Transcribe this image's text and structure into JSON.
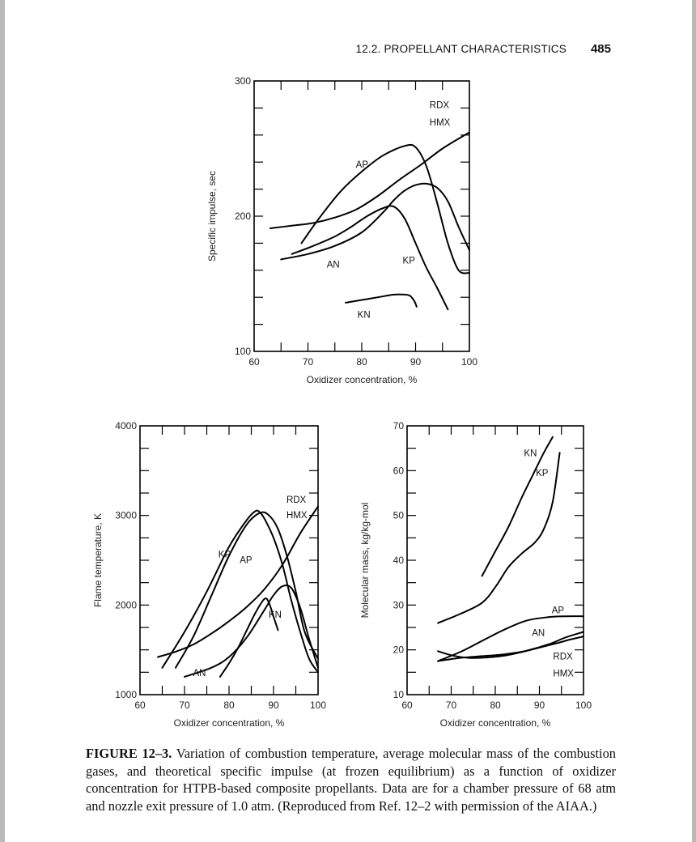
{
  "page": {
    "section_title": "12.2. PROPELLANT CHARACTERISTICS",
    "page_number": "485"
  },
  "chart_data": [
    {
      "type": "line",
      "ylabel": "Specific impulse, sec",
      "xlabel": "Oxidizer concentration, %",
      "xlim": [
        60,
        100
      ],
      "ylim": [
        100,
        300
      ],
      "x_ticks": [
        "60",
        "70",
        "80",
        "90",
        "100"
      ],
      "y_ticks": [
        "100",
        "200",
        "300"
      ],
      "minor_x_step": 5,
      "minor_y_step": 20,
      "grid": false,
      "series": [
        {
          "name": "AP",
          "x": [
            68.8,
            72,
            76,
            80,
            84,
            88,
            90,
            92,
            94,
            96,
            98,
            100
          ],
          "y": [
            180,
            198,
            218,
            233,
            245,
            252,
            251,
            237,
            210,
            180,
            160,
            158
          ]
        },
        {
          "name": "RDX HMX",
          "x": [
            63,
            67,
            71,
            75,
            79,
            83,
            87,
            91,
            95,
            100
          ],
          "y": [
            191,
            193,
            195,
            199,
            205,
            215,
            227,
            238,
            250,
            262
          ]
        },
        {
          "name": "KP",
          "x": [
            67,
            71,
            75,
            78,
            81,
            84,
            86,
            88,
            90,
            92,
            94,
            96
          ],
          "y": [
            172,
            178,
            185,
            192,
            200,
            206,
            207,
            198,
            180,
            162,
            147,
            131
          ]
        },
        {
          "name": "AN",
          "x": [
            65,
            70,
            75,
            80,
            84,
            86,
            88,
            90,
            92,
            94,
            96,
            98,
            100
          ],
          "y": [
            168,
            172,
            178,
            188,
            203,
            212,
            219,
            223,
            224,
            221,
            211,
            192,
            175
          ]
        },
        {
          "name": "KN",
          "x": [
            77,
            80,
            83,
            86,
            88,
            89,
            89.8,
            90.2
          ],
          "y": [
            136,
            138,
            140,
            142,
            142,
            141,
            137,
            133
          ]
        }
      ],
      "labels": [
        {
          "text": "RDX",
          "x": 92.6,
          "y": 280
        },
        {
          "text": "HMX",
          "x": 92.6,
          "y": 267
        },
        {
          "text": "AP",
          "x": 78.9,
          "y": 236
        },
        {
          "text": "AN",
          "x": 73.5,
          "y": 162
        },
        {
          "text": "KP",
          "x": 87.6,
          "y": 165
        },
        {
          "text": "KN",
          "x": 79.2,
          "y": 125
        }
      ]
    },
    {
      "type": "line",
      "ylabel": "Flame temperature, K",
      "xlabel": "Oxidizer concentration, %",
      "xlim": [
        60,
        100
      ],
      "ylim": [
        1000,
        4000
      ],
      "x_ticks": [
        "60",
        "70",
        "80",
        "90",
        "100"
      ],
      "y_ticks": [
        "1000",
        "2000",
        "3000",
        "4000"
      ],
      "minor_x_step": 5,
      "minor_y_step": 250,
      "grid": false,
      "series": [
        {
          "name": "KP",
          "x": [
            65,
            70,
            75,
            80,
            84,
            86,
            87,
            88,
            90,
            92,
            94,
            96,
            98,
            100
          ],
          "y": [
            1300,
            1700,
            2150,
            2650,
            2950,
            3050,
            3030,
            2960,
            2750,
            2450,
            2050,
            1700,
            1400,
            1250
          ]
        },
        {
          "name": "AP",
          "x": [
            68,
            72,
            76,
            80,
            84,
            87,
            89,
            91,
            93,
            95,
            97,
            100
          ],
          "y": [
            1300,
            1650,
            2100,
            2550,
            2900,
            3030,
            3000,
            2850,
            2550,
            2150,
            1700,
            1400
          ]
        },
        {
          "name": "RDX HMX",
          "x": [
            64,
            68,
            72,
            76,
            80,
            84,
            88,
            92,
            96,
            100
          ],
          "y": [
            1420,
            1480,
            1560,
            1680,
            1820,
            1980,
            2180,
            2450,
            2800,
            3100
          ]
        },
        {
          "name": "AN",
          "x": [
            70,
            76,
            80,
            84,
            88,
            90,
            92,
            94,
            96,
            98,
            100
          ],
          "y": [
            1200,
            1300,
            1420,
            1640,
            1950,
            2110,
            2210,
            2190,
            1970,
            1620,
            1300
          ]
        },
        {
          "name": "KN",
          "x": [
            78,
            80,
            82,
            84,
            86,
            88,
            89,
            90,
            91
          ],
          "y": [
            1200,
            1350,
            1520,
            1720,
            1920,
            2070,
            2020,
            1870,
            1720
          ]
        }
      ],
      "labels": [
        {
          "text": "RDX",
          "x": 92.9,
          "y": 3140
        },
        {
          "text": "HMX",
          "x": 92.9,
          "y": 2970
        },
        {
          "text": "KP",
          "x": 77.6,
          "y": 2530
        },
        {
          "text": "AP",
          "x": 82.4,
          "y": 2470
        },
        {
          "text": "KN",
          "x": 88.9,
          "y": 1860
        },
        {
          "text": "AN",
          "x": 71.9,
          "y": 1210
        }
      ]
    },
    {
      "type": "line",
      "ylabel": "Molecular mass, kg/kg-mol",
      "xlabel": "Oxidizer concentration, %",
      "xlim": [
        60,
        100
      ],
      "ylim": [
        10,
        70
      ],
      "x_ticks": [
        "60",
        "70",
        "80",
        "90",
        "100"
      ],
      "y_ticks": [
        "10",
        "20",
        "30",
        "40",
        "50",
        "60",
        "70"
      ],
      "minor_x_step": 5,
      "minor_y_step": 5,
      "grid": false,
      "series": [
        {
          "name": "KN",
          "x": [
            77,
            80,
            83,
            86,
            89,
            91,
            93
          ],
          "y": [
            36.5,
            42,
            47.5,
            54,
            60,
            64,
            67.5
          ]
        },
        {
          "name": "KP",
          "x": [
            67,
            72,
            77,
            80,
            83,
            86,
            89,
            91,
            93,
            94.6
          ],
          "y": [
            26,
            28,
            30.5,
            34,
            38.5,
            41.5,
            44,
            47,
            53,
            64
          ]
        },
        {
          "name": "AP",
          "x": [
            67,
            72,
            77,
            82,
            87,
            92,
            96,
            100
          ],
          "y": [
            17.5,
            19.5,
            22,
            24.5,
            26.5,
            27.3,
            27.5,
            27.5
          ]
        },
        {
          "name": "AN",
          "x": [
            67,
            70,
            74,
            78,
            82,
            86,
            90,
            94,
            97,
            100
          ],
          "y": [
            19.7,
            18.8,
            18.2,
            18.3,
            18.7,
            19.5,
            20.5,
            21.5,
            22.3,
            23
          ]
        },
        {
          "name": "RDX HMX",
          "x": [
            67,
            72,
            77,
            82,
            87,
            92,
            96,
            100
          ],
          "y": [
            17.5,
            18.2,
            18.6,
            19.0,
            19.8,
            21.2,
            22.8,
            24.0
          ]
        }
      ],
      "labels": [
        {
          "text": "KN",
          "x": 86.5,
          "y": 63.2
        },
        {
          "text": "KP",
          "x": 89.2,
          "y": 58.8
        },
        {
          "text": "AP",
          "x": 92.8,
          "y": 28.2
        },
        {
          "text": "AN",
          "x": 88.3,
          "y": 23.1
        },
        {
          "text": "RDX",
          "x": 93.1,
          "y": 17.9
        },
        {
          "text": "HMX",
          "x": 93.1,
          "y": 14.1
        }
      ]
    }
  ],
  "caption": {
    "label": "FIGURE 12–3.",
    "text": "Variation of combustion temperature, average molecular mass of the combustion gases, and theoretical specific impulse (at frozen equilibrium) as a function of oxidizer concentration for HTPB-based composite propellants. Data are for a chamber pressure of 68 atm and nozzle exit pressure of 1.0 atm. (Reproduced from Ref. 12–2 with permission of the AIAA.)"
  }
}
